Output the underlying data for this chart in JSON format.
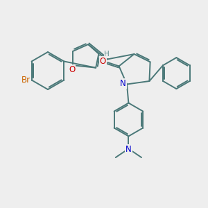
{
  "bg_color": "#eeeeee",
  "bond_color": "#4a7878",
  "bond_width": 1.4,
  "dbo": 0.07,
  "atom_colors": {
    "O": "#cc0000",
    "N_blue": "#0000cc",
    "Br": "#cc6600",
    "H": "#5a8888",
    "C": "#4a7878"
  }
}
